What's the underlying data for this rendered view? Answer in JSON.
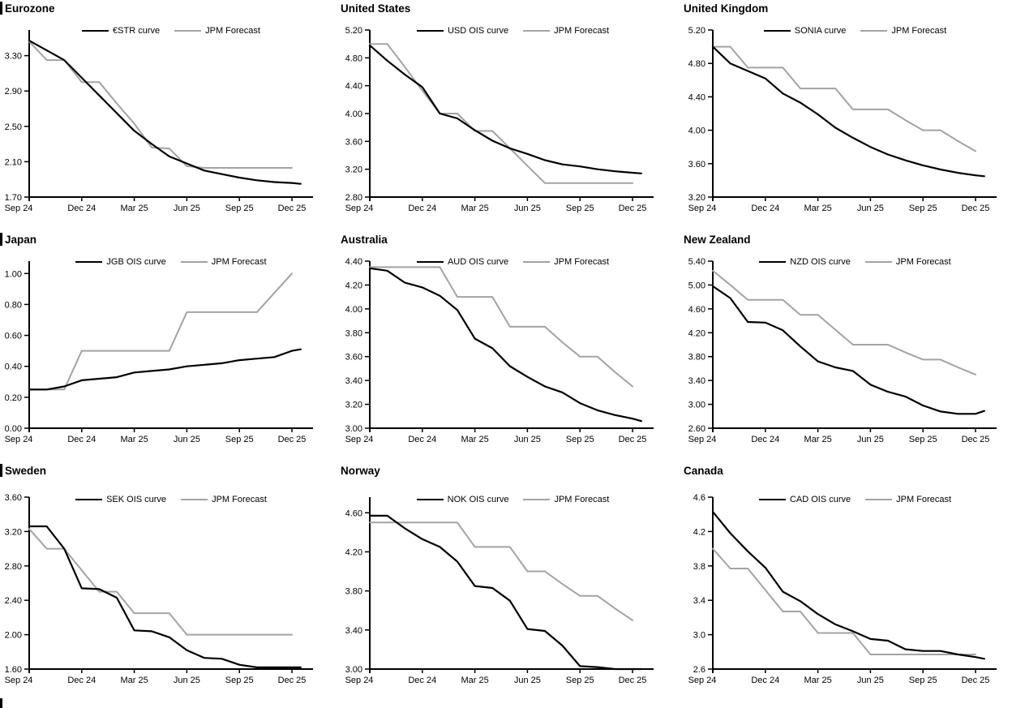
{
  "colors": {
    "line_black": "#000000",
    "line_gray": "#a3a3a3",
    "axis": "#000000"
  },
  "x_axis": {
    "months": [
      "Sep 24",
      "Oct 24",
      "Nov 24",
      "Dec 24",
      "Jan 25",
      "Feb 25",
      "Mar 25",
      "Apr 25",
      "May 25",
      "Jun 25",
      "Jul 25",
      "Aug 25",
      "Sep 25",
      "Oct 25",
      "Nov 25",
      "Dec 25"
    ],
    "tick_label_indices": [
      0,
      3,
      6,
      9,
      12,
      15
    ],
    "tick_labels": [
      "Sep 24",
      "Dec 24",
      "Mar 25",
      "Jun 25",
      "Sep 25",
      "Dec 25"
    ]
  },
  "chart_data": [
    {
      "type": "line",
      "title": "Eurozone",
      "title_bar": true,
      "legend_position": "top",
      "ylim": [
        1.7,
        3.59
      ],
      "ytick_values": [
        1.7,
        2.1,
        2.5,
        2.9,
        3.3
      ],
      "ytick_labels": [
        "1.70",
        "2.10",
        "2.50",
        "2.90",
        "3.30"
      ],
      "series": [
        {
          "name": "€STR curve",
          "role": "market",
          "color": "#000000",
          "values": [
            3.47,
            3.36,
            3.25,
            3.05,
            2.85,
            2.65,
            2.45,
            2.3,
            2.16,
            2.08,
            2.0,
            1.96,
            1.92,
            1.89,
            1.87,
            1.86
          ],
          "ext_value": 1.85
        },
        {
          "name": "JPM Forecast",
          "role": "forecast",
          "color": "#a3a3a3",
          "values": [
            3.46,
            3.25,
            3.25,
            3.0,
            3.0,
            2.76,
            2.53,
            2.26,
            2.25,
            2.05,
            2.03,
            2.03,
            2.03,
            2.03,
            2.03,
            2.03
          ]
        }
      ]
    },
    {
      "type": "line",
      "title": "United States",
      "title_bar": false,
      "legend_position": "top",
      "ylim": [
        2.8,
        5.2
      ],
      "ytick_values": [
        2.8,
        3.2,
        3.6,
        4.0,
        4.4,
        4.8,
        5.2
      ],
      "ytick_labels": [
        "2.80",
        "3.20",
        "3.60",
        "4.00",
        "4.40",
        "4.80",
        "5.20"
      ],
      "series": [
        {
          "name": "USD OIS curve",
          "role": "market",
          "color": "#000000",
          "values": [
            4.98,
            4.76,
            4.56,
            4.38,
            4.0,
            3.93,
            3.76,
            3.61,
            3.5,
            3.42,
            3.33,
            3.27,
            3.24,
            3.2,
            3.17,
            3.15
          ],
          "ext_value": 3.14
        },
        {
          "name": "JPM Forecast",
          "role": "forecast",
          "color": "#a3a3a3",
          "values": [
            5.0,
            5.0,
            4.67,
            4.33,
            4.0,
            4.0,
            3.75,
            3.75,
            3.5,
            3.25,
            3.0,
            3.0,
            3.0,
            3.0,
            3.0,
            3.0
          ]
        }
      ]
    },
    {
      "type": "line",
      "title": "United Kingdom",
      "title_bar": false,
      "legend_position": "top",
      "ylim": [
        3.2,
        5.2
      ],
      "ytick_values": [
        3.2,
        3.6,
        4.0,
        4.4,
        4.8,
        5.2
      ],
      "ytick_labels": [
        "3.20",
        "3.60",
        "4.00",
        "4.40",
        "4.80",
        "5.20"
      ],
      "series": [
        {
          "name": "SONIA curve",
          "role": "market",
          "color": "#000000",
          "values": [
            5.0,
            4.8,
            4.71,
            4.62,
            4.44,
            4.33,
            4.19,
            4.03,
            3.91,
            3.8,
            3.71,
            3.64,
            3.58,
            3.53,
            3.49,
            3.46
          ],
          "ext_value": 3.45
        },
        {
          "name": "JPM Forecast",
          "role": "forecast",
          "color": "#a3a3a3",
          "values": [
            5.0,
            5.0,
            4.75,
            4.75,
            4.75,
            4.5,
            4.5,
            4.5,
            4.25,
            4.25,
            4.25,
            4.12,
            4.0,
            4.0,
            3.87,
            3.75
          ]
        }
      ]
    },
    {
      "type": "line",
      "title": "Japan",
      "title_bar": true,
      "legend_position": "top",
      "ylim": [
        0.0,
        1.08
      ],
      "ytick_values": [
        0.0,
        0.2,
        0.4,
        0.6,
        0.8,
        1.0
      ],
      "ytick_labels": [
        "0.00",
        "0.20",
        "0.40",
        "0.60",
        "0.80",
        "1.00"
      ],
      "series": [
        {
          "name": "JGB OIS curve",
          "role": "market",
          "color": "#000000",
          "values": [
            0.25,
            0.25,
            0.27,
            0.31,
            0.32,
            0.33,
            0.36,
            0.37,
            0.38,
            0.4,
            0.41,
            0.42,
            0.44,
            0.45,
            0.46,
            0.5
          ],
          "ext_value": 0.51
        },
        {
          "name": "JPM Forecast",
          "role": "forecast",
          "color": "#a3a3a3",
          "values": [
            0.25,
            0.25,
            0.25,
            0.5,
            0.5,
            0.5,
            0.5,
            0.5,
            0.5,
            0.75,
            0.75,
            0.75,
            0.75,
            0.75,
            0.875,
            1.0
          ]
        }
      ]
    },
    {
      "type": "line",
      "title": "Australia",
      "title_bar": false,
      "legend_position": "top",
      "ylim": [
        3.0,
        4.4
      ],
      "ytick_values": [
        3.0,
        3.2,
        3.4,
        3.6,
        3.8,
        4.0,
        4.2,
        4.4
      ],
      "ytick_labels": [
        "3.00",
        "3.20",
        "3.40",
        "3.60",
        "3.80",
        "4.00",
        "4.20",
        "4.40"
      ],
      "series": [
        {
          "name": "AUD OIS curve",
          "role": "market",
          "color": "#000000",
          "values": [
            4.34,
            4.32,
            4.22,
            4.18,
            4.11,
            3.99,
            3.75,
            3.67,
            3.52,
            3.43,
            3.35,
            3.3,
            3.21,
            3.15,
            3.11,
            3.08
          ],
          "ext_value": 3.06
        },
        {
          "name": "JPM Forecast",
          "role": "forecast",
          "color": "#a3a3a3",
          "values": [
            4.35,
            4.35,
            4.35,
            4.35,
            4.35,
            4.1,
            4.1,
            4.1,
            3.85,
            3.85,
            3.85,
            3.72,
            3.6,
            3.6,
            3.47,
            3.35
          ]
        }
      ]
    },
    {
      "type": "line",
      "title": "New Zealand",
      "title_bar": false,
      "legend_position": "top",
      "ylim": [
        2.6,
        5.4
      ],
      "ytick_values": [
        2.6,
        3.0,
        3.4,
        3.8,
        4.2,
        4.6,
        5.0,
        5.4
      ],
      "ytick_labels": [
        "2.60",
        "3.00",
        "3.40",
        "3.80",
        "4.20",
        "4.60",
        "5.00",
        "5.40"
      ],
      "series": [
        {
          "name": "NZD OIS curve",
          "role": "market",
          "color": "#000000",
          "values": [
            4.98,
            4.78,
            4.38,
            4.37,
            4.24,
            3.97,
            3.72,
            3.62,
            3.56,
            3.33,
            3.21,
            3.13,
            2.98,
            2.88,
            2.84,
            2.84
          ],
          "ext_value": 2.89
        },
        {
          "name": "JPM Forecast",
          "role": "forecast",
          "color": "#a3a3a3",
          "values": [
            5.24,
            5.0,
            4.75,
            4.75,
            4.75,
            4.5,
            4.5,
            4.25,
            4.0,
            4.0,
            4.0,
            3.87,
            3.75,
            3.75,
            3.62,
            3.5
          ]
        }
      ]
    },
    {
      "type": "line",
      "title": "Sweden",
      "title_bar": true,
      "legend_position": "top",
      "ylim": [
        1.6,
        3.6
      ],
      "ytick_values": [
        1.6,
        2.0,
        2.4,
        2.8,
        3.2,
        3.6
      ],
      "ytick_labels": [
        "1.60",
        "2.00",
        "2.40",
        "2.80",
        "3.20",
        "3.60"
      ],
      "series": [
        {
          "name": "SEK OIS curve",
          "role": "market",
          "color": "#000000",
          "values": [
            3.26,
            3.26,
            3.0,
            2.54,
            2.53,
            2.43,
            2.05,
            2.04,
            1.97,
            1.82,
            1.73,
            1.72,
            1.65,
            1.62,
            1.62,
            1.62
          ],
          "ext_value": 1.62
        },
        {
          "name": "JPM Forecast",
          "role": "forecast",
          "color": "#a3a3a3",
          "values": [
            3.23,
            3.0,
            3.0,
            2.75,
            2.5,
            2.5,
            2.25,
            2.25,
            2.25,
            2.0,
            2.0,
            2.0,
            2.0,
            2.0,
            2.0,
            2.0
          ]
        }
      ]
    },
    {
      "type": "line",
      "title": "Norway",
      "title_bar": false,
      "legend_position": "top",
      "ylim": [
        3.0,
        4.76
      ],
      "ytick_values": [
        3.0,
        3.4,
        3.8,
        4.2,
        4.6
      ],
      "ytick_labels": [
        "3.00",
        "3.40",
        "3.80",
        "4.20",
        "4.60"
      ],
      "series": [
        {
          "name": "NOK OIS curve",
          "role": "market",
          "color": "#000000",
          "values": [
            4.57,
            4.57,
            4.44,
            4.33,
            4.25,
            4.1,
            3.85,
            3.83,
            3.7,
            3.41,
            3.39,
            3.24,
            3.03,
            3.02,
            3.0,
            3.0
          ],
          "ext_value": 3.0
        },
        {
          "name": "JPM Forecast",
          "role": "forecast",
          "color": "#a3a3a3",
          "values": [
            4.5,
            4.5,
            4.5,
            4.5,
            4.5,
            4.5,
            4.25,
            4.25,
            4.25,
            4.0,
            4.0,
            3.87,
            3.75,
            3.75,
            3.62,
            3.5
          ]
        }
      ]
    },
    {
      "type": "line",
      "title": "Canada",
      "title_bar": false,
      "legend_position": "top",
      "ylim": [
        2.6,
        4.6
      ],
      "ytick_values": [
        2.6,
        3.0,
        3.4,
        3.8,
        4.2,
        4.6
      ],
      "ytick_labels": [
        "2.6",
        "3.0",
        "3.4",
        "3.8",
        "4.2",
        "4.6"
      ],
      "series": [
        {
          "name": "CAD OIS curve",
          "role": "market",
          "color": "#000000",
          "values": [
            4.43,
            4.18,
            3.97,
            3.78,
            3.5,
            3.39,
            3.24,
            3.12,
            3.04,
            2.95,
            2.93,
            2.83,
            2.81,
            2.81,
            2.77,
            2.74
          ],
          "ext_value": 2.72
        },
        {
          "name": "JPM Forecast",
          "role": "forecast",
          "color": "#a3a3a3",
          "values": [
            4.0,
            3.77,
            3.77,
            3.52,
            3.27,
            3.27,
            3.02,
            3.02,
            3.02,
            2.77,
            2.77,
            2.77,
            2.77,
            2.77,
            2.77,
            2.77
          ]
        }
      ]
    }
  ]
}
